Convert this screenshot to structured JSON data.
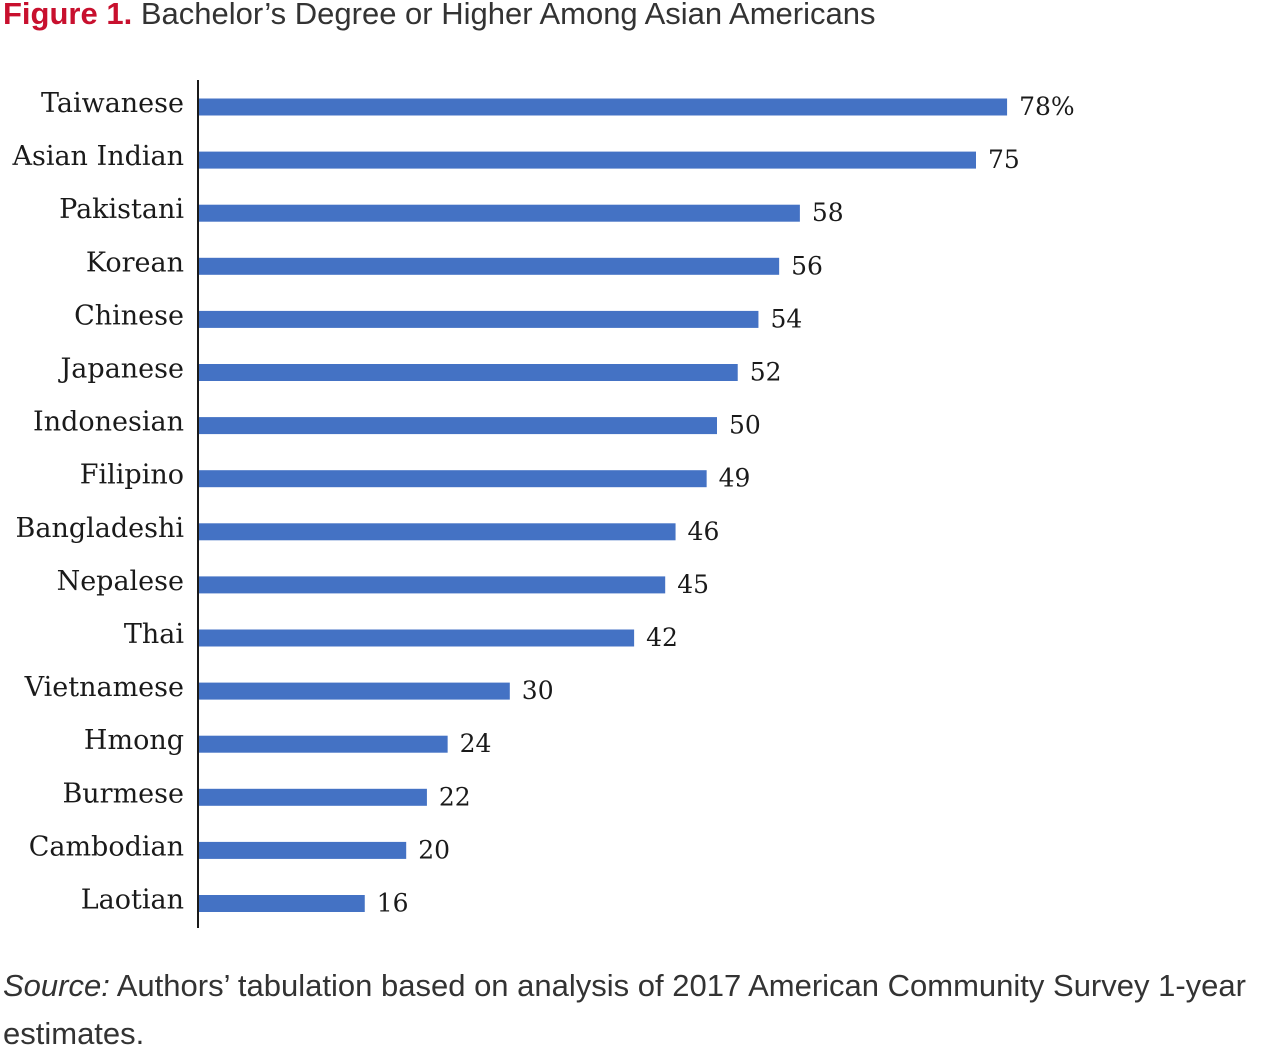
{
  "figure": {
    "label": "Figure 1.",
    "title": "Bachelor’s Degree or Higher Among Asian Americans"
  },
  "source": {
    "label": "Source:",
    "text": "Authors’ tabulation based on analysis of 2017 American Community Survey 1-year estimates."
  },
  "chart_data": {
    "type": "bar",
    "orientation": "horizontal",
    "title": "Bachelor’s Degree or Higher Among Asian Americans",
    "categories": [
      "Taiwanese",
      "Asian Indian",
      "Pakistani",
      "Korean",
      "Chinese",
      "Japanese",
      "Indonesian",
      "Filipino",
      "Bangladeshi",
      "Nepalese",
      "Thai",
      "Vietnamese",
      "Hmong",
      "Burmese",
      "Cambodian",
      "Laotian"
    ],
    "values": [
      78,
      75,
      58,
      56,
      54,
      52,
      50,
      49,
      46,
      45,
      42,
      30,
      24,
      22,
      20,
      16
    ],
    "value_labels": [
      "78%",
      "75",
      "58",
      "56",
      "54",
      "52",
      "50",
      "49",
      "46",
      "45",
      "42",
      "30",
      "24",
      "22",
      "20",
      "16"
    ],
    "unit": "%",
    "xlim": [
      0,
      100
    ],
    "bar_color": "#4472c4",
    "grid": false,
    "legend": "none"
  }
}
